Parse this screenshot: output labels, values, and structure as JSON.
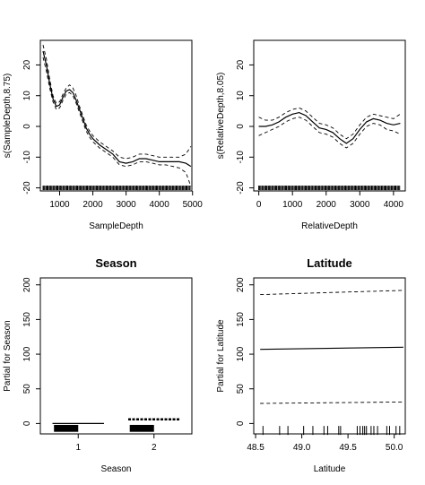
{
  "chart_data": [
    {
      "type": "line",
      "title": "",
      "xlabel": "SampleDepth",
      "ylabel": "s(SampleDepth,8.75)",
      "xlim": [
        420,
        4980
      ],
      "ylim": [
        -21,
        28
      ],
      "xticks": [
        1000,
        2000,
        3000,
        4000,
        5000
      ],
      "yticks": [
        -20,
        -10,
        0,
        10,
        20
      ],
      "series": [
        {
          "role": "fit",
          "style": "solid",
          "x": [
            500,
            600,
            700,
            800,
            900,
            1000,
            1100,
            1200,
            1300,
            1400,
            1500,
            1600,
            1700,
            1800,
            1900,
            2000,
            2200,
            2400,
            2600,
            2800,
            3000,
            3200,
            3400,
            3600,
            3800,
            4000,
            4200,
            4400,
            4600,
            4800,
            4950
          ],
          "y": [
            24.5,
            20,
            14,
            9,
            6.5,
            7,
            9.5,
            11.5,
            12,
            11,
            8.5,
            5.5,
            2.5,
            -0.5,
            -2.5,
            -4,
            -6,
            -7.5,
            -9,
            -11.5,
            -12,
            -11.5,
            -10.5,
            -10.5,
            -11,
            -11.5,
            -11.5,
            -11.5,
            -11.5,
            -12,
            -13
          ]
        },
        {
          "role": "upper",
          "style": "dashed",
          "x": [
            500,
            600,
            700,
            800,
            900,
            1000,
            1100,
            1200,
            1300,
            1400,
            1500,
            1600,
            1700,
            1800,
            1900,
            2000,
            2200,
            2400,
            2600,
            2800,
            3000,
            3200,
            3400,
            3600,
            3800,
            4000,
            4200,
            4400,
            4600,
            4800,
            4950
          ],
          "y": [
            26.5,
            22,
            15.5,
            10,
            7.5,
            8,
            10.5,
            12.5,
            13.5,
            12.5,
            10,
            6.5,
            3.5,
            0.5,
            -1.5,
            -3,
            -5,
            -6.5,
            -8,
            -10,
            -10.5,
            -10,
            -9,
            -9,
            -9.5,
            -10,
            -10,
            -10,
            -10,
            -9,
            -6.5
          ]
        },
        {
          "role": "lower",
          "style": "dashed",
          "x": [
            500,
            600,
            700,
            800,
            900,
            1000,
            1100,
            1200,
            1300,
            1400,
            1500,
            1600,
            1700,
            1800,
            1900,
            2000,
            2200,
            2400,
            2600,
            2800,
            3000,
            3200,
            3400,
            3600,
            3800,
            4000,
            4200,
            4400,
            4600,
            4800,
            4950
          ],
          "y": [
            22.5,
            18,
            12.5,
            8,
            5.5,
            6,
            8.5,
            10.5,
            11,
            10,
            7.5,
            4.5,
            1.5,
            -1.5,
            -3.5,
            -5,
            -7,
            -8.5,
            -10,
            -12.5,
            -13,
            -12.5,
            -11.5,
            -11.5,
            -12,
            -12.5,
            -12.5,
            -13,
            -13.5,
            -15,
            -19.5
          ]
        }
      ],
      "rug": {
        "y": -20,
        "dense_from": 500,
        "dense_to": 4950
      }
    },
    {
      "type": "line",
      "title": "",
      "xlabel": "RelativeDepth",
      "ylabel": "s(RelativeDepth,8.05)",
      "xlim": [
        -150,
        4350
      ],
      "ylim": [
        -21,
        28
      ],
      "xticks": [
        0,
        1000,
        2000,
        3000,
        4000
      ],
      "yticks": [
        -20,
        -10,
        0,
        10,
        20
      ],
      "series": [
        {
          "role": "fit",
          "style": "solid",
          "x": [
            0,
            200,
            400,
            600,
            800,
            1000,
            1200,
            1400,
            1600,
            1800,
            2000,
            2200,
            2400,
            2600,
            2800,
            3000,
            3200,
            3400,
            3600,
            3800,
            4000,
            4200
          ],
          "y": [
            0,
            0,
            0.5,
            1.5,
            3,
            4,
            4.5,
            3.5,
            1.5,
            -0.5,
            -1,
            -2,
            -4,
            -5.5,
            -4,
            -1,
            1.5,
            2.5,
            2,
            1,
            0.5,
            1
          ]
        },
        {
          "role": "upper",
          "style": "dashed",
          "x": [
            0,
            200,
            400,
            600,
            800,
            1000,
            1200,
            1400,
            1600,
            1800,
            2000,
            2200,
            2400,
            2600,
            2800,
            3000,
            3200,
            3400,
            3600,
            3800,
            4000,
            4200
          ],
          "y": [
            3,
            2,
            2,
            3,
            4.5,
            5.5,
            6,
            5,
            3,
            1,
            0.5,
            -0.5,
            -2.5,
            -4,
            -2.5,
            0.5,
            3,
            4,
            3.5,
            3,
            2.5,
            4
          ]
        },
        {
          "role": "lower",
          "style": "dashed",
          "x": [
            0,
            200,
            400,
            600,
            800,
            1000,
            1200,
            1400,
            1600,
            1800,
            2000,
            2200,
            2400,
            2600,
            2800,
            3000,
            3200,
            3400,
            3600,
            3800,
            4000,
            4200
          ],
          "y": [
            -3,
            -2,
            -1,
            0,
            1.5,
            2.5,
            3,
            2,
            0,
            -2,
            -2.5,
            -3.5,
            -5.5,
            -7,
            -5.5,
            -2.5,
            0,
            1,
            0.5,
            -1,
            -1.5,
            -2.5
          ]
        }
      ],
      "rug": {
        "y": -20,
        "dense_from": 0,
        "dense_to": 4200
      }
    },
    {
      "type": "bar",
      "title": "Season",
      "xlabel": "Season",
      "ylabel": "Partial for Season",
      "categories": [
        "1",
        "2"
      ],
      "xlim": [
        0.5,
        2.5
      ],
      "ylim": [
        -15,
        210
      ],
      "yticks": [
        0,
        50,
        100,
        150,
        200
      ],
      "effects": [
        0,
        6
      ],
      "blocks": [
        [
          -12,
          -2
        ],
        [
          -12,
          -2
        ]
      ]
    },
    {
      "type": "line",
      "title": "Latitude",
      "xlabel": "Latitude",
      "ylabel": "Partial for Latitude",
      "xlim": [
        48.48,
        50.12
      ],
      "ylim": [
        -15,
        210
      ],
      "xticks": [
        48.5,
        49.0,
        49.5,
        50.0
      ],
      "xtick_labels": [
        "48.5",
        "49.0",
        "49.5",
        "50.0"
      ],
      "yticks": [
        0,
        50,
        100,
        150,
        200
      ],
      "series": [
        {
          "role": "fit",
          "style": "solid",
          "x": [
            48.55,
            50.1
          ],
          "y": [
            107,
            110
          ]
        },
        {
          "role": "upper",
          "style": "dashed",
          "x": [
            48.55,
            50.1
          ],
          "y": [
            186,
            192
          ]
        },
        {
          "role": "lower",
          "style": "dashed",
          "x": [
            48.55,
            50.1
          ],
          "y": [
            29,
            31
          ]
        }
      ],
      "rug": {
        "y": -10,
        "x": [
          48.58,
          48.76,
          48.85,
          49.02,
          49.12,
          49.24,
          49.28,
          49.4,
          49.42,
          49.6,
          49.63,
          49.66,
          49.68,
          49.7,
          49.75,
          49.78,
          49.82,
          49.92,
          49.95,
          50.02,
          50.06
        ]
      }
    }
  ]
}
